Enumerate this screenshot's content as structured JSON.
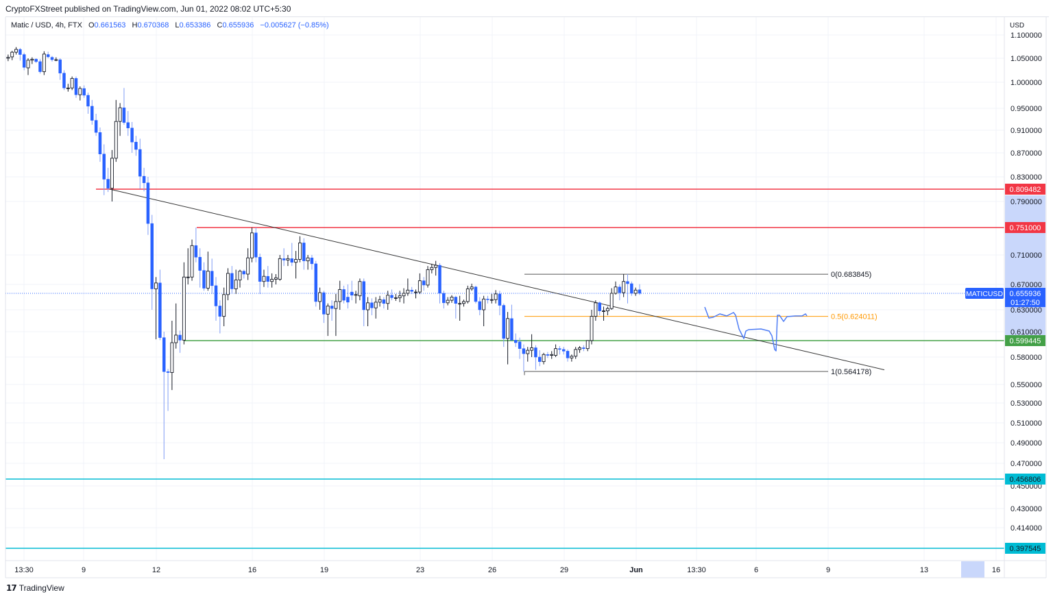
{
  "header": {
    "published": "CryptoFXStreet published on TradingView.com, Jun 01, 2022 08:02 UTC+5:30"
  },
  "legend": {
    "symbol": "Matic / USD, 4h, FTX",
    "o_label": "O",
    "open": "0.661563",
    "h_label": "H",
    "high": "0.670368",
    "l_label": "L",
    "low": "0.653386",
    "c_label": "C",
    "close": "0.655936",
    "change": "−0.005627 (−0.85%)"
  },
  "price_axis": {
    "currency": "USD",
    "ticks": [
      "1.100000",
      "1.050000",
      "1.000000",
      "0.950000",
      "0.910000",
      "0.870000",
      "0.830000",
      "0.790000",
      "0.710000",
      "0.670000",
      "0.630000",
      "0.610000",
      "0.580000",
      "0.550000",
      "0.530000",
      "0.510000",
      "0.490000",
      "0.470000",
      "0.450000",
      "0.430000",
      "0.414000"
    ]
  },
  "time_axis": {
    "ticks": [
      "13:30",
      "9",
      "12",
      "16",
      "19",
      "23",
      "26",
      "29",
      "Jun",
      "13:30",
      "6",
      "9",
      "13",
      "16"
    ]
  },
  "colors": {
    "up_border": "#131722",
    "up_fill": "#ffffff",
    "down": "#2962ff",
    "down_wick": "#7f9cf5",
    "resistance": "#f23645",
    "support": "#43a047",
    "deep_support": "#00bcd4",
    "fib_mid": "#ff9800",
    "fib_line": "#555555",
    "projection": "#4c7bf5",
    "axis_highlight": "#c9d7fb"
  },
  "chart_data": {
    "type": "candlestick",
    "symbol": "MATICUSD",
    "interval": "4h",
    "xlabel": "",
    "ylabel": "USD",
    "ylim": [
      0.39,
      1.11
    ],
    "grid": true,
    "candles_ohlc": [
      [
        1.05,
        1.058,
        1.044,
        1.052
      ],
      [
        1.053,
        1.066,
        1.046,
        1.063
      ],
      [
        1.063,
        1.074,
        1.058,
        1.069
      ],
      [
        1.069,
        1.072,
        1.045,
        1.058
      ],
      [
        1.058,
        1.062,
        1.025,
        1.031
      ],
      [
        1.03,
        1.05,
        1.015,
        1.046
      ],
      [
        1.046,
        1.052,
        1.038,
        1.048
      ],
      [
        1.048,
        1.05,
        1.04,
        1.043
      ],
      [
        1.043,
        1.048,
        1.018,
        1.022
      ],
      [
        1.022,
        1.065,
        1.015,
        1.059
      ],
      [
        1.058,
        1.064,
        1.05,
        1.053
      ],
      [
        1.052,
        1.055,
        1.043,
        1.047
      ],
      [
        1.047,
        1.052,
        1.044,
        1.047
      ],
      [
        1.047,
        1.05,
        1.005,
        1.019
      ],
      [
        1.019,
        1.025,
        0.985,
        0.989
      ],
      [
        0.989,
        0.997,
        0.982,
        0.989
      ],
      [
        0.989,
        1.012,
        0.985,
        1.008
      ],
      [
        1.008,
        1.012,
        0.97,
        0.976
      ],
      [
        0.976,
        0.992,
        0.965,
        0.988
      ],
      [
        0.988,
        0.994,
        0.97,
        0.975
      ],
      [
        0.975,
        0.98,
        0.94,
        0.954
      ],
      [
        0.954,
        0.966,
        0.92,
        0.928
      ],
      [
        0.928,
        0.94,
        0.9,
        0.906
      ],
      [
        0.906,
        0.915,
        0.855,
        0.868
      ],
      [
        0.868,
        0.885,
        0.8,
        0.826
      ],
      [
        0.826,
        0.845,
        0.805,
        0.811
      ],
      [
        0.811,
        0.875,
        0.79,
        0.861
      ],
      [
        0.861,
        0.966,
        0.855,
        0.926
      ],
      [
        0.926,
        0.96,
        0.9,
        0.951
      ],
      [
        0.951,
        0.989,
        0.92,
        0.924
      ],
      [
        0.924,
        0.945,
        0.9,
        0.914
      ],
      [
        0.914,
        0.925,
        0.87,
        0.889
      ],
      [
        0.889,
        0.9,
        0.865,
        0.876
      ],
      [
        0.876,
        0.895,
        0.81,
        0.831
      ],
      [
        0.831,
        0.845,
        0.806,
        0.82
      ],
      [
        0.82,
        0.83,
        0.74,
        0.757
      ],
      [
        0.757,
        0.77,
        0.63,
        0.663
      ],
      [
        0.663,
        0.68,
        0.601,
        0.672
      ],
      [
        0.672,
        0.69,
        0.6,
        0.603
      ],
      [
        0.603,
        0.61,
        0.474,
        0.564
      ],
      [
        0.564,
        0.567,
        0.522,
        0.563
      ],
      [
        0.563,
        0.62,
        0.544,
        0.597
      ],
      [
        0.597,
        0.64,
        0.59,
        0.606
      ],
      [
        0.606,
        0.611,
        0.585,
        0.6
      ],
      [
        0.6,
        0.7,
        0.595,
        0.68
      ],
      [
        0.68,
        0.72,
        0.67,
        0.68
      ],
      [
        0.68,
        0.733,
        0.675,
        0.724
      ],
      [
        0.724,
        0.751,
        0.7,
        0.707
      ],
      [
        0.707,
        0.72,
        0.665,
        0.689
      ],
      [
        0.689,
        0.7,
        0.66,
        0.664
      ],
      [
        0.664,
        0.715,
        0.66,
        0.688
      ],
      [
        0.688,
        0.705,
        0.655,
        0.668
      ],
      [
        0.668,
        0.68,
        0.62,
        0.636
      ],
      [
        0.636,
        0.645,
        0.608,
        0.624
      ],
      [
        0.624,
        0.665,
        0.615,
        0.654
      ],
      [
        0.654,
        0.692,
        0.645,
        0.685
      ],
      [
        0.685,
        0.695,
        0.655,
        0.663
      ],
      [
        0.663,
        0.69,
        0.655,
        0.676
      ],
      [
        0.676,
        0.69,
        0.665,
        0.688
      ],
      [
        0.688,
        0.69,
        0.678,
        0.684
      ],
      [
        0.684,
        0.72,
        0.676,
        0.706
      ],
      [
        0.706,
        0.751,
        0.7,
        0.743
      ],
      [
        0.743,
        0.751,
        0.7,
        0.707
      ],
      [
        0.707,
        0.712,
        0.655,
        0.674
      ],
      [
        0.674,
        0.69,
        0.666,
        0.681
      ],
      [
        0.681,
        0.695,
        0.665,
        0.674
      ],
      [
        0.674,
        0.685,
        0.665,
        0.677
      ],
      [
        0.677,
        0.684,
        0.67,
        0.679
      ],
      [
        0.677,
        0.71,
        0.675,
        0.705
      ],
      [
        0.705,
        0.72,
        0.695,
        0.703
      ],
      [
        0.703,
        0.71,
        0.695,
        0.705
      ],
      [
        0.705,
        0.728,
        0.695,
        0.7
      ],
      [
        0.7,
        0.716,
        0.678,
        0.704
      ],
      [
        0.704,
        0.738,
        0.7,
        0.728
      ],
      [
        0.728,
        0.735,
        0.69,
        0.702
      ],
      [
        0.702,
        0.71,
        0.69,
        0.706
      ],
      [
        0.706,
        0.71,
        0.69,
        0.698
      ],
      [
        0.698,
        0.702,
        0.635,
        0.643
      ],
      [
        0.643,
        0.665,
        0.63,
        0.657
      ],
      [
        0.657,
        0.66,
        0.618,
        0.626
      ],
      [
        0.626,
        0.64,
        0.605,
        0.636
      ],
      [
        0.636,
        0.645,
        0.62,
        0.632
      ],
      [
        0.632,
        0.655,
        0.605,
        0.643
      ],
      [
        0.643,
        0.675,
        0.63,
        0.662
      ],
      [
        0.662,
        0.668,
        0.64,
        0.645
      ],
      [
        0.65,
        0.67,
        0.632,
        0.642
      ],
      [
        0.658,
        0.675,
        0.645,
        0.653
      ],
      [
        0.654,
        0.66,
        0.64,
        0.654
      ],
      [
        0.652,
        0.678,
        0.645,
        0.674
      ],
      [
        0.674,
        0.678,
        0.615,
        0.63
      ],
      [
        0.63,
        0.65,
        0.615,
        0.641
      ],
      [
        0.641,
        0.648,
        0.625,
        0.633
      ],
      [
        0.633,
        0.65,
        0.622,
        0.642
      ],
      [
        0.642,
        0.652,
        0.635,
        0.646
      ],
      [
        0.646,
        0.65,
        0.632,
        0.64
      ],
      [
        0.64,
        0.66,
        0.63,
        0.653
      ],
      [
        0.653,
        0.662,
        0.645,
        0.649
      ],
      [
        0.649,
        0.655,
        0.644,
        0.649
      ],
      [
        0.649,
        0.66,
        0.642,
        0.652
      ],
      [
        0.652,
        0.664,
        0.64,
        0.656
      ],
      [
        0.656,
        0.678,
        0.652,
        0.661
      ],
      [
        0.661,
        0.666,
        0.655,
        0.659
      ],
      [
        0.658,
        0.662,
        0.648,
        0.658
      ],
      [
        0.658,
        0.685,
        0.655,
        0.675
      ],
      [
        0.675,
        0.68,
        0.66,
        0.669
      ],
      [
        0.669,
        0.695,
        0.665,
        0.69
      ],
      [
        0.69,
        0.698,
        0.685,
        0.693
      ],
      [
        0.693,
        0.702,
        0.682,
        0.696
      ],
      [
        0.696,
        0.699,
        0.64,
        0.656
      ],
      [
        0.656,
        0.66,
        0.632,
        0.641
      ],
      [
        0.641,
        0.65,
        0.637,
        0.645
      ],
      [
        0.645,
        0.653,
        0.641,
        0.65
      ],
      [
        0.65,
        0.652,
        0.622,
        0.64
      ],
      [
        0.64,
        0.652,
        0.62,
        0.64
      ],
      [
        0.64,
        0.646,
        0.635,
        0.643
      ],
      [
        0.643,
        0.668,
        0.64,
        0.663
      ],
      [
        0.663,
        0.671,
        0.66,
        0.666
      ],
      [
        0.666,
        0.668,
        0.64,
        0.643
      ],
      [
        0.643,
        0.65,
        0.625,
        0.63
      ],
      [
        0.63,
        0.652,
        0.615,
        0.647
      ],
      [
        0.647,
        0.652,
        0.64,
        0.646
      ],
      [
        0.646,
        0.655,
        0.64,
        0.646
      ],
      [
        0.646,
        0.661,
        0.64,
        0.655
      ],
      [
        0.655,
        0.66,
        0.625,
        0.637
      ],
      [
        0.637,
        0.64,
        0.592,
        0.602
      ],
      [
        0.602,
        0.628,
        0.572,
        0.622
      ],
      [
        0.622,
        0.638,
        0.6,
        0.6
      ],
      [
        0.6,
        0.608,
        0.592,
        0.597
      ],
      [
        0.598,
        0.603,
        0.578,
        0.59
      ],
      [
        0.59,
        0.595,
        0.564,
        0.584
      ],
      [
        0.584,
        0.592,
        0.575,
        0.588
      ],
      [
        0.588,
        0.607,
        0.58,
        0.591
      ],
      [
        0.591,
        0.594,
        0.566,
        0.58
      ],
      [
        0.58,
        0.588,
        0.57,
        0.575
      ],
      [
        0.575,
        0.585,
        0.572,
        0.583
      ],
      [
        0.583,
        0.586,
        0.579,
        0.582
      ],
      [
        0.582,
        0.587,
        0.578,
        0.583
      ],
      [
        0.582,
        0.595,
        0.58,
        0.59
      ],
      [
        0.59,
        0.593,
        0.583,
        0.589
      ],
      [
        0.589,
        0.592,
        0.583,
        0.587
      ],
      [
        0.587,
        0.589,
        0.575,
        0.579
      ],
      [
        0.579,
        0.583,
        0.575,
        0.581
      ],
      [
        0.581,
        0.592,
        0.578,
        0.589
      ],
      [
        0.589,
        0.593,
        0.585,
        0.591
      ],
      [
        0.591,
        0.594,
        0.587,
        0.59
      ],
      [
        0.59,
        0.6,
        0.587,
        0.5995
      ],
      [
        0.5995,
        0.63,
        0.595,
        0.624
      ],
      [
        0.624,
        0.645,
        0.62,
        0.641
      ],
      [
        0.641,
        0.643,
        0.625,
        0.629
      ],
      [
        0.629,
        0.635,
        0.62,
        0.629
      ],
      [
        0.629,
        0.635,
        0.625,
        0.632
      ],
      [
        0.632,
        0.664,
        0.63,
        0.656
      ],
      [
        0.656,
        0.674,
        0.654,
        0.666
      ],
      [
        0.666,
        0.67,
        0.645,
        0.657
      ],
      [
        0.657,
        0.684,
        0.65,
        0.674
      ],
      [
        0.674,
        0.684,
        0.64,
        0.671
      ],
      [
        0.671,
        0.674,
        0.652,
        0.656
      ],
      [
        0.656,
        0.665,
        0.652,
        0.661
      ],
      [
        0.661563,
        0.670368,
        0.653386,
        0.655936
      ]
    ],
    "levels": [
      {
        "price": 0.809482,
        "label": "0.809482",
        "role": "resistance"
      },
      {
        "price": 0.751,
        "label": "0.751000",
        "role": "resistance"
      },
      {
        "price": 0.599445,
        "label": "0.599445",
        "role": "support"
      },
      {
        "price": 0.456806,
        "label": "0.456806",
        "role": "deep_support"
      },
      {
        "price": 0.397545,
        "label": "0.397545",
        "role": "deep_support"
      }
    ],
    "fibonacci": [
      {
        "ratio": 0,
        "price": 0.683845,
        "label": "0(0.683845)"
      },
      {
        "ratio": 0.5,
        "price": 0.624011,
        "label": "0.5(0.624011)"
      },
      {
        "ratio": 1,
        "price": 0.564178,
        "label": "1(0.564178)"
      }
    ],
    "trendline": {
      "start_price": 0.8095,
      "end_price": 0.566
    },
    "last_price": {
      "symbol_label": "MATICUSD",
      "price": 0.655936,
      "price_label": "0.655936",
      "countdown": "01:27:50"
    }
  },
  "footer": {
    "brand": "TradingView"
  }
}
